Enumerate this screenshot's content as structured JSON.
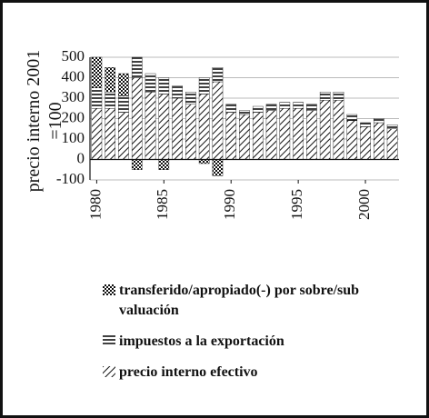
{
  "chart_data": {
    "type": "bar",
    "stacked": true,
    "y_label": "precio interno 2001\n=100",
    "x": [
      1980,
      1981,
      1982,
      1983,
      1984,
      1985,
      1986,
      1987,
      1988,
      1989,
      1990,
      1991,
      1992,
      1993,
      1994,
      1995,
      1996,
      1997,
      1998,
      1999,
      2000,
      2001,
      2002
    ],
    "xlim": [
      1979.5,
      2002.5
    ],
    "xticks": [
      1980,
      1985,
      1990,
      1995,
      2000
    ],
    "ylim": [
      -100,
      500
    ],
    "yticks": [
      -100,
      0,
      100,
      200,
      300,
      400,
      500
    ],
    "grid": true,
    "series": [
      {
        "name": "precio interno efectivo",
        "color": "#111111",
        "pattern": "diagonal",
        "values": [
          250,
          250,
          230,
          400,
          330,
          320,
          300,
          270,
          320,
          380,
          230,
          220,
          230,
          240,
          250,
          250,
          240,
          290,
          290,
          190,
          160,
          180,
          150
        ]
      },
      {
        "name": "impuestos a la exportación",
        "color": "#111111",
        "pattern": "horizontal",
        "values": [
          100,
          80,
          80,
          100,
          90,
          80,
          60,
          60,
          80,
          70,
          40,
          20,
          30,
          30,
          30,
          30,
          30,
          40,
          40,
          30,
          20,
          20,
          20
        ]
      },
      {
        "name": "transferido/apropiado(-) por sobre/sub valuación",
        "color": "#111111",
        "pattern": "checker",
        "values": [
          150,
          120,
          110,
          -50,
          0,
          -50,
          0,
          0,
          -20,
          -80,
          0,
          0,
          0,
          0,
          0,
          0,
          0,
          0,
          0,
          0,
          0,
          0,
          0
        ]
      }
    ]
  }
}
